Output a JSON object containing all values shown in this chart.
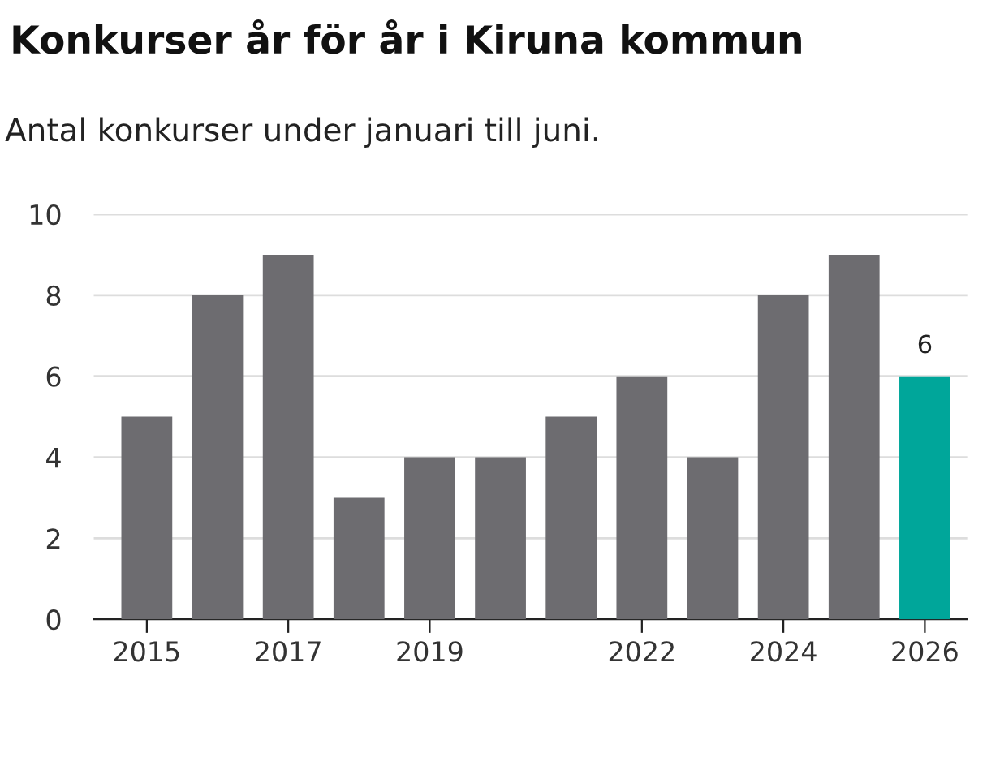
{
  "chart_data": {
    "type": "bar",
    "title": "Konkurser år för år i Kiruna kommun",
    "subtitle": "Antal konkurser under januari till juni.",
    "categories": [
      "2015",
      null,
      "2017",
      null,
      "2019",
      null,
      null,
      "2022",
      null,
      "2024",
      null,
      "2026"
    ],
    "values": [
      5,
      8,
      9,
      3,
      4,
      4,
      5,
      6,
      4,
      8,
      9,
      6
    ],
    "colors": [
      "#6d6c70",
      "#6d6c70",
      "#6d6c70",
      "#6d6c70",
      "#6d6c70",
      "#6d6c70",
      "#6d6c70",
      "#6d6c70",
      "#6d6c70",
      "#6d6c70",
      "#6d6c70",
      "#00a69a"
    ],
    "value_labels": [
      null,
      null,
      null,
      null,
      null,
      null,
      null,
      null,
      null,
      null,
      null,
      "6"
    ],
    "ylim": [
      0,
      10
    ],
    "yticks": [
      0,
      2,
      4,
      6,
      8,
      10
    ],
    "grid": "y"
  }
}
